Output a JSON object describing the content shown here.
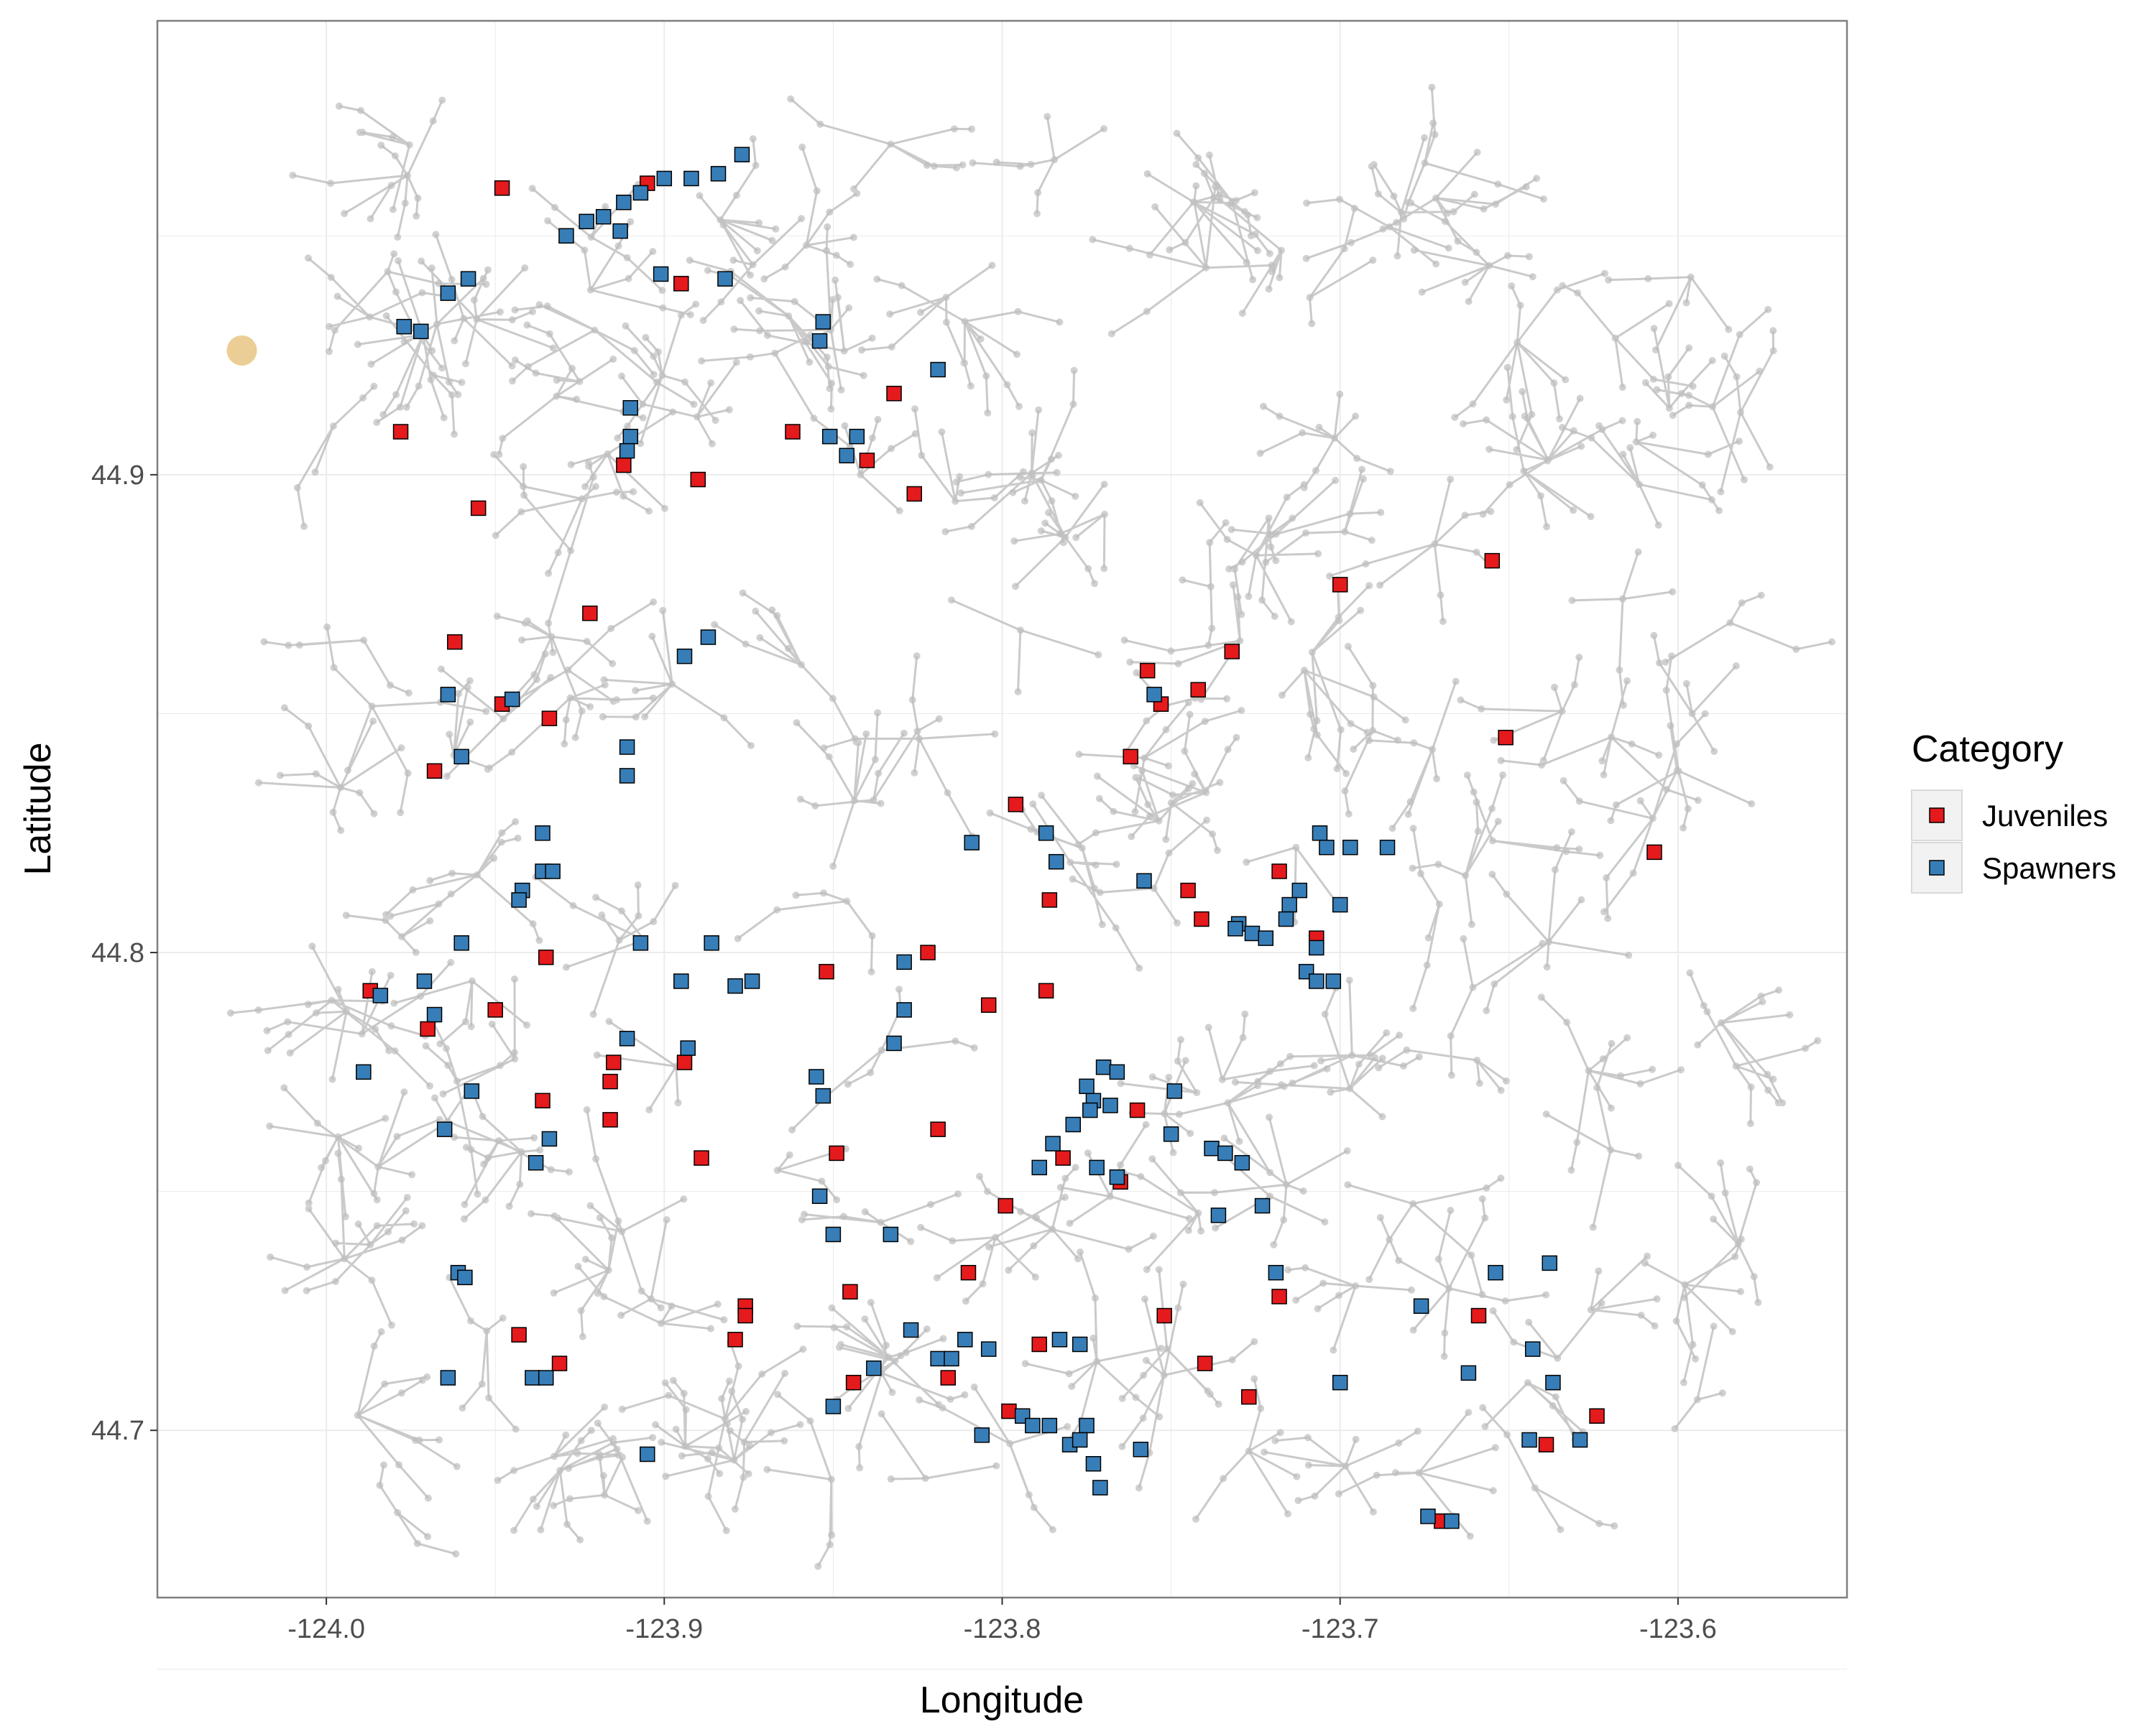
{
  "chart_data": {
    "type": "scatter",
    "title": "",
    "xlabel": "Longitude",
    "ylabel": "Latitude",
    "xlim": [
      -124.05,
      -123.55
    ],
    "ylim": [
      44.665,
      44.995
    ],
    "x_ticks": [
      -124.0,
      -123.9,
      -123.8,
      -123.7,
      -123.6
    ],
    "x_tick_labels": [
      "-124.0",
      "-123.9",
      "-123.8",
      "-123.7",
      "-123.6"
    ],
    "y_ticks": [
      44.7,
      44.8,
      44.9
    ],
    "y_tick_labels": [
      "44.7",
      "44.8",
      "44.9"
    ],
    "grid": true,
    "legend": {
      "title": "Category",
      "position": "right"
    },
    "background_network_color": "#bdbdbd",
    "outlet_point": {
      "x": -124.025,
      "y": 44.926,
      "color": "#e6c27a"
    },
    "series": [
      {
        "name": "Juveniles",
        "color": "#e41a1c",
        "points": [
          [
            -123.948,
            44.96
          ],
          [
            -123.905,
            44.961
          ],
          [
            -123.895,
            44.94
          ],
          [
            -123.978,
            44.909
          ],
          [
            -123.912,
            44.902
          ],
          [
            -123.89,
            44.899
          ],
          [
            -123.955,
            44.893
          ],
          [
            -123.862,
            44.909
          ],
          [
            -123.832,
            44.917
          ],
          [
            -123.84,
            44.903
          ],
          [
            -123.826,
            44.896
          ],
          [
            -123.922,
            44.871
          ],
          [
            -123.962,
            44.865
          ],
          [
            -123.948,
            44.852
          ],
          [
            -123.934,
            44.849
          ],
          [
            -123.968,
            44.838
          ],
          [
            -123.655,
            44.882
          ],
          [
            -123.7,
            44.877
          ],
          [
            -123.732,
            44.863
          ],
          [
            -123.757,
            44.859
          ],
          [
            -123.742,
            44.855
          ],
          [
            -123.753,
            44.852
          ],
          [
            -123.762,
            44.841
          ],
          [
            -123.651,
            44.845
          ],
          [
            -123.796,
            44.831
          ],
          [
            -123.607,
            44.821
          ],
          [
            -123.718,
            44.817
          ],
          [
            -123.745,
            44.813
          ],
          [
            -123.786,
            44.811
          ],
          [
            -123.741,
            44.807
          ],
          [
            -123.707,
            44.803
          ],
          [
            -123.822,
            44.8
          ],
          [
            -123.935,
            44.799
          ],
          [
            -123.852,
            44.796
          ],
          [
            -123.987,
            44.792
          ],
          [
            -123.787,
            44.792
          ],
          [
            -123.804,
            44.789
          ],
          [
            -123.95,
            44.788
          ],
          [
            -123.97,
            44.784
          ],
          [
            -123.894,
            44.777
          ],
          [
            -123.915,
            44.777
          ],
          [
            -123.916,
            44.773
          ],
          [
            -123.936,
            44.769
          ],
          [
            -123.76,
            44.767
          ],
          [
            -123.916,
            44.765
          ],
          [
            -123.819,
            44.763
          ],
          [
            -123.849,
            44.758
          ],
          [
            -123.889,
            44.757
          ],
          [
            -123.782,
            44.757
          ],
          [
            -123.765,
            44.752
          ],
          [
            -123.799,
            44.747
          ],
          [
            -123.81,
            44.733
          ],
          [
            -123.845,
            44.729
          ],
          [
            -123.718,
            44.728
          ],
          [
            -123.876,
            44.726
          ],
          [
            -123.876,
            44.724
          ],
          [
            -123.752,
            44.724
          ],
          [
            -123.659,
            44.724
          ],
          [
            -123.943,
            44.72
          ],
          [
            -123.879,
            44.719
          ],
          [
            -123.789,
            44.718
          ],
          [
            -123.931,
            44.714
          ],
          [
            -123.74,
            44.714
          ],
          [
            -123.816,
            44.711
          ],
          [
            -123.844,
            44.71
          ],
          [
            -123.727,
            44.707
          ],
          [
            -123.798,
            44.704
          ],
          [
            -123.624,
            44.703
          ],
          [
            -123.639,
            44.697
          ],
          [
            -123.67,
            44.681
          ]
        ]
      },
      {
        "name": "Spawners",
        "color": "#377eb8",
        "points": [
          [
            -123.877,
            44.967
          ],
          [
            -123.884,
            44.963
          ],
          [
            -123.892,
            44.962
          ],
          [
            -123.9,
            44.962
          ],
          [
            -123.907,
            44.959
          ],
          [
            -123.912,
            44.957
          ],
          [
            -123.918,
            44.954
          ],
          [
            -123.923,
            44.953
          ],
          [
            -123.929,
            44.95
          ],
          [
            -123.913,
            44.951
          ],
          [
            -123.901,
            44.942
          ],
          [
            -123.882,
            44.941
          ],
          [
            -123.958,
            44.941
          ],
          [
            -123.964,
            44.938
          ],
          [
            -123.977,
            44.931
          ],
          [
            -123.972,
            44.93
          ],
          [
            -123.853,
            44.932
          ],
          [
            -123.854,
            44.928
          ],
          [
            -123.819,
            44.922
          ],
          [
            -123.91,
            44.914
          ],
          [
            -123.91,
            44.908
          ],
          [
            -123.911,
            44.905
          ],
          [
            -123.851,
            44.908
          ],
          [
            -123.843,
            44.908
          ],
          [
            -123.846,
            44.904
          ],
          [
            -123.887,
            44.866
          ],
          [
            -123.894,
            44.862
          ],
          [
            -123.964,
            44.854
          ],
          [
            -123.945,
            44.853
          ],
          [
            -123.755,
            44.854
          ],
          [
            -123.96,
            44.841
          ],
          [
            -123.911,
            44.843
          ],
          [
            -123.911,
            44.837
          ],
          [
            -123.706,
            44.825
          ],
          [
            -123.697,
            44.822
          ],
          [
            -123.704,
            44.822
          ],
          [
            -123.686,
            44.822
          ],
          [
            -123.936,
            44.825
          ],
          [
            -123.809,
            44.823
          ],
          [
            -123.787,
            44.825
          ],
          [
            -123.784,
            44.819
          ],
          [
            -123.936,
            44.817
          ],
          [
            -123.933,
            44.817
          ],
          [
            -123.942,
            44.813
          ],
          [
            -123.943,
            44.811
          ],
          [
            -123.758,
            44.815
          ],
          [
            -123.712,
            44.813
          ],
          [
            -123.715,
            44.81
          ],
          [
            -123.7,
            44.81
          ],
          [
            -123.716,
            44.807
          ],
          [
            -123.73,
            44.806
          ],
          [
            -123.731,
            44.805
          ],
          [
            -123.726,
            44.804
          ],
          [
            -123.722,
            44.803
          ],
          [
            -123.707,
            44.801
          ],
          [
            -123.96,
            44.802
          ],
          [
            -123.886,
            44.802
          ],
          [
            -123.907,
            44.802
          ],
          [
            -123.829,
            44.798
          ],
          [
            -123.71,
            44.796
          ],
          [
            -123.707,
            44.794
          ],
          [
            -123.702,
            44.794
          ],
          [
            -123.895,
            44.794
          ],
          [
            -123.874,
            44.794
          ],
          [
            -123.879,
            44.793
          ],
          [
            -123.971,
            44.794
          ],
          [
            -123.984,
            44.791
          ],
          [
            -123.968,
            44.787
          ],
          [
            -123.829,
            44.788
          ],
          [
            -123.832,
            44.781
          ],
          [
            -123.911,
            44.782
          ],
          [
            -123.893,
            44.78
          ],
          [
            -123.77,
            44.776
          ],
          [
            -123.766,
            44.775
          ],
          [
            -123.989,
            44.775
          ],
          [
            -123.855,
            44.774
          ],
          [
            -123.775,
            44.772
          ],
          [
            -123.749,
            44.771
          ],
          [
            -123.957,
            44.771
          ],
          [
            -123.853,
            44.77
          ],
          [
            -123.773,
            44.769
          ],
          [
            -123.768,
            44.768
          ],
          [
            -123.774,
            44.767
          ],
          [
            -123.779,
            44.764
          ],
          [
            -123.965,
            44.763
          ],
          [
            -123.934,
            44.761
          ],
          [
            -123.75,
            44.762
          ],
          [
            -123.785,
            44.76
          ],
          [
            -123.738,
            44.759
          ],
          [
            -123.734,
            44.758
          ],
          [
            -123.938,
            44.756
          ],
          [
            -123.789,
            44.755
          ],
          [
            -123.772,
            44.755
          ],
          [
            -123.766,
            44.753
          ],
          [
            -123.729,
            44.756
          ],
          [
            -123.854,
            44.749
          ],
          [
            -123.723,
            44.747
          ],
          [
            -123.736,
            44.745
          ],
          [
            -123.85,
            44.741
          ],
          [
            -123.833,
            44.741
          ],
          [
            -123.961,
            44.733
          ],
          [
            -123.959,
            44.732
          ],
          [
            -123.719,
            44.733
          ],
          [
            -123.654,
            44.733
          ],
          [
            -123.638,
            44.735
          ],
          [
            -123.676,
            44.726
          ],
          [
            -123.827,
            44.721
          ],
          [
            -123.811,
            44.719
          ],
          [
            -123.804,
            44.717
          ],
          [
            -123.819,
            44.715
          ],
          [
            -123.815,
            44.715
          ],
          [
            -123.783,
            44.719
          ],
          [
            -123.777,
            44.718
          ],
          [
            -123.643,
            44.717
          ],
          [
            -123.662,
            44.712
          ],
          [
            -123.964,
            44.711
          ],
          [
            -123.939,
            44.711
          ],
          [
            -123.935,
            44.711
          ],
          [
            -123.637,
            44.71
          ],
          [
            -123.7,
            44.71
          ],
          [
            -123.838,
            44.713
          ],
          [
            -123.85,
            44.705
          ],
          [
            -123.794,
            44.703
          ],
          [
            -123.791,
            44.701
          ],
          [
            -123.786,
            44.701
          ],
          [
            -123.78,
            44.697
          ],
          [
            -123.775,
            44.701
          ],
          [
            -123.777,
            44.698
          ],
          [
            -123.806,
            44.699
          ],
          [
            -123.644,
            44.698
          ],
          [
            -123.629,
            44.698
          ],
          [
            -123.759,
            44.696
          ],
          [
            -123.905,
            44.695
          ],
          [
            -123.773,
            44.693
          ],
          [
            -123.771,
            44.688
          ],
          [
            -123.674,
            44.682
          ],
          [
            -123.667,
            44.681
          ]
        ]
      }
    ]
  }
}
